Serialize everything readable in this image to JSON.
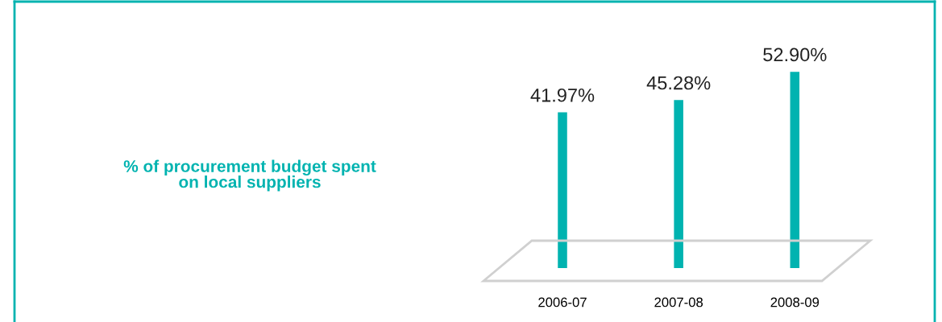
{
  "chart_data": {
    "type": "bar",
    "title": "% of procurement budget spent\non local suppliers",
    "categories": [
      "2006-07",
      "2007-08",
      "2008-09"
    ],
    "values": [
      41.97,
      45.28,
      52.9
    ],
    "value_labels": [
      "41.97%",
      "45.28%",
      "52.90%"
    ],
    "color": "#00b3b0"
  }
}
